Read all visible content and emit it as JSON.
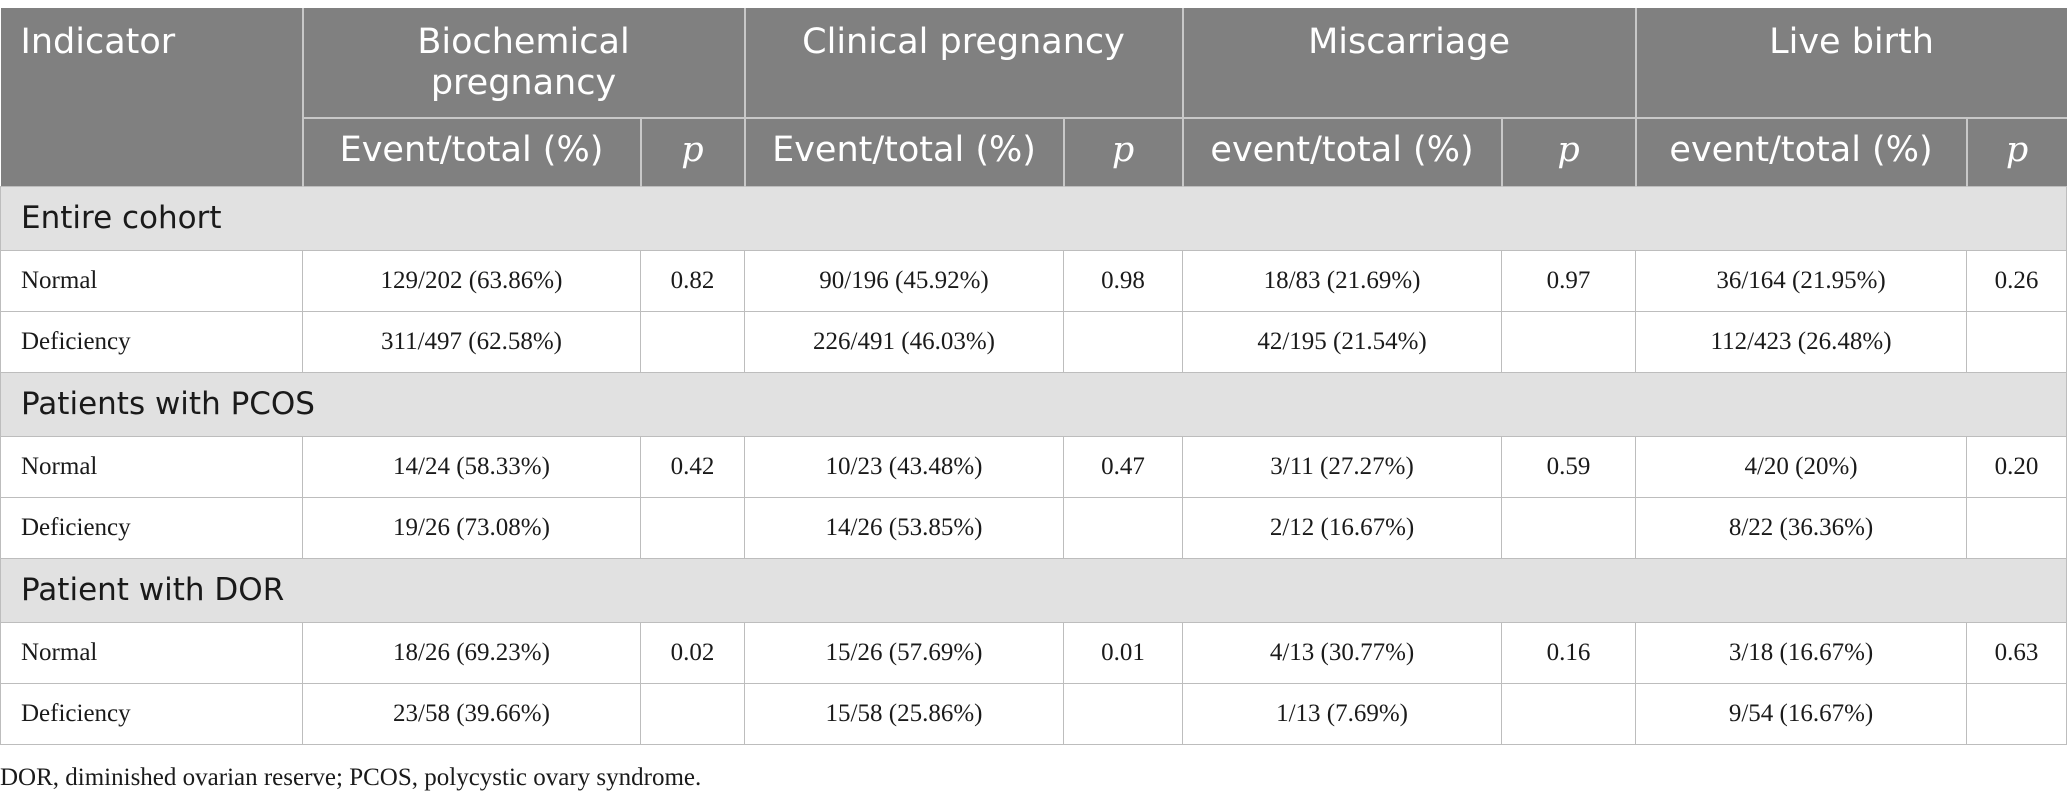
{
  "header": {
    "indicator": "Indicator",
    "groups": [
      "Biochemical pregnancy",
      "Clinical pregnancy",
      "Miscarriage",
      "Live birth"
    ],
    "sub": [
      "Event/total (%)",
      "p",
      "Event/total (%)",
      "p",
      "event/total (%)",
      "p",
      "event/total (%)",
      "p"
    ]
  },
  "sections": [
    {
      "title": "Entire cohort",
      "rows": [
        {
          "label": "Normal",
          "cells": [
            "129/202 (63.86%)",
            "0.82",
            "90/196 (45.92%)",
            "0.98",
            "18/83 (21.69%)",
            "0.97",
            "36/164 (21.95%)",
            "0.26"
          ]
        },
        {
          "label": "Deficiency",
          "cells": [
            "311/497 (62.58%)",
            "",
            "226/491 (46.03%)",
            "",
            "42/195 (21.54%)",
            "",
            "112/423 (26.48%)",
            ""
          ]
        }
      ]
    },
    {
      "title": "Patients with PCOS",
      "rows": [
        {
          "label": "Normal",
          "cells": [
            "14/24 (58.33%)",
            "0.42",
            "10/23 (43.48%)",
            "0.47",
            "3/11 (27.27%)",
            "0.59",
            "4/20 (20%)",
            "0.20"
          ]
        },
        {
          "label": "Deficiency",
          "cells": [
            "19/26 (73.08%)",
            "",
            "14/26 (53.85%)",
            "",
            "2/12 (16.67%)",
            "",
            "8/22 (36.36%)",
            ""
          ]
        }
      ]
    },
    {
      "title": "Patient with DOR",
      "rows": [
        {
          "label": "Normal",
          "cells": [
            "18/26 (69.23%)",
            "0.02",
            "15/26 (57.69%)",
            "0.01",
            "4/13 (30.77%)",
            "0.16",
            "3/18 (16.67%)",
            "0.63"
          ]
        },
        {
          "label": "Deficiency",
          "cells": [
            "23/58 (39.66%)",
            "",
            "15/58 (25.86%)",
            "",
            "1/13 (7.69%)",
            "",
            "9/54 (16.67%)",
            ""
          ]
        }
      ]
    }
  ],
  "footnote": "DOR, diminished ovarian reserve; PCOS, polycystic ovary syndrome."
}
